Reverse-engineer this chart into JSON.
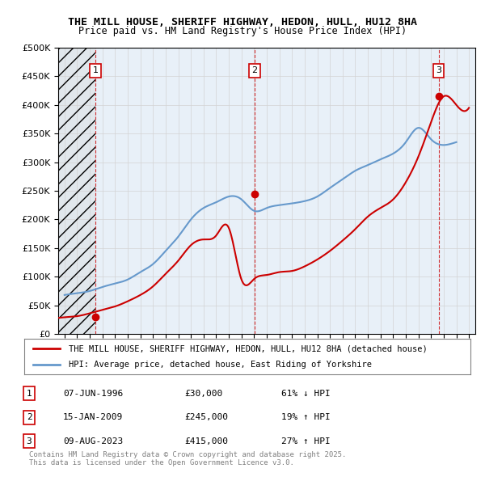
{
  "title": "THE MILL HOUSE, SHERIFF HIGHWAY, HEDON, HULL, HU12 8HA",
  "subtitle": "Price paid vs. HM Land Registry's House Price Index (HPI)",
  "legend_line1": "THE MILL HOUSE, SHERIFF HIGHWAY, HEDON, HULL, HU12 8HA (detached house)",
  "legend_line2": "HPI: Average price, detached house, East Riding of Yorkshire",
  "table_rows": [
    {
      "num": "1",
      "date": "07-JUN-1996",
      "price": "£30,000",
      "change": "61% ↓ HPI"
    },
    {
      "num": "2",
      "date": "15-JAN-2009",
      "price": "£245,000",
      "change": "19% ↑ HPI"
    },
    {
      "num": "3",
      "date": "09-AUG-2023",
      "price": "£415,000",
      "change": "27% ↑ HPI"
    }
  ],
  "footer": "Contains HM Land Registry data © Crown copyright and database right 2025.\nThis data is licensed under the Open Government Licence v3.0.",
  "sale_dates_num": [
    1996.44,
    2009.04,
    2023.6
  ],
  "sale_prices": [
    30000,
    245000,
    415000
  ],
  "sale_labels": [
    "1",
    "2",
    "3"
  ],
  "vline_colors": [
    "#cc0000",
    "#cc0000",
    "#cc0000"
  ],
  "hpi_color": "#6699cc",
  "price_color": "#cc0000",
  "ylim": [
    0,
    500000
  ],
  "xlim": [
    1993.5,
    2026.5
  ],
  "yticks": [
    0,
    50000,
    100000,
    150000,
    200000,
    250000,
    300000,
    350000,
    400000,
    450000,
    500000
  ],
  "xticks": [
    1994,
    1995,
    1996,
    1997,
    1998,
    1999,
    2000,
    2001,
    2002,
    2003,
    2004,
    2005,
    2006,
    2007,
    2008,
    2009,
    2010,
    2011,
    2012,
    2013,
    2014,
    2015,
    2016,
    2017,
    2018,
    2019,
    2020,
    2021,
    2022,
    2023,
    2024,
    2025,
    2026
  ],
  "hpi_years": [
    1994,
    1995,
    1996,
    1997,
    1998,
    1999,
    2000,
    2001,
    2002,
    2003,
    2004,
    2005,
    2006,
    2007,
    2008,
    2009,
    2010,
    2011,
    2012,
    2013,
    2014,
    2015,
    2016,
    2017,
    2018,
    2019,
    2020,
    2021,
    2022,
    2023,
    2024,
    2025
  ],
  "hpi_values": [
    68000,
    71000,
    75000,
    82000,
    88000,
    95000,
    108000,
    122000,
    145000,
    170000,
    200000,
    220000,
    230000,
    240000,
    235000,
    215000,
    220000,
    225000,
    228000,
    232000,
    240000,
    255000,
    270000,
    285000,
    295000,
    305000,
    315000,
    335000,
    360000,
    340000,
    330000,
    335000
  ],
  "price_index_years": [
    1993.5,
    1994,
    1995,
    1996,
    1997,
    1998,
    1999,
    2000,
    2001,
    2002,
    2003,
    2004,
    2005,
    2006,
    2007,
    2008,
    2009,
    2010,
    2011,
    2012,
    2013,
    2014,
    2015,
    2016,
    2017,
    2018,
    2019,
    2020,
    2021,
    2022,
    2023,
    2024,
    2025,
    2026
  ],
  "price_index_values": [
    28000,
    29000,
    31000,
    36000,
    42000,
    48000,
    57000,
    68000,
    83000,
    105000,
    128000,
    155000,
    165000,
    172000,
    185000,
    95000,
    96000,
    103000,
    108000,
    110000,
    118000,
    130000,
    145000,
    163000,
    183000,
    205000,
    220000,
    235000,
    265000,
    310000,
    370000,
    415000,
    400000,
    395000
  ]
}
